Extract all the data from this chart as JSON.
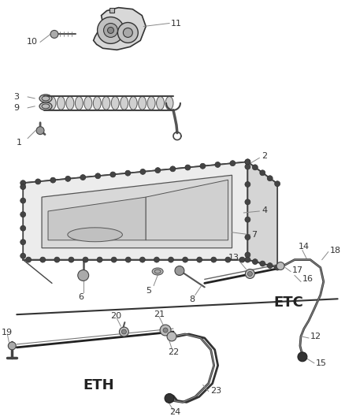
{
  "bg_color": "#ffffff",
  "fig_w": 4.38,
  "fig_h": 5.33,
  "line_color": "#444444",
  "label_color": "#333333",
  "leader_color": "#888888"
}
